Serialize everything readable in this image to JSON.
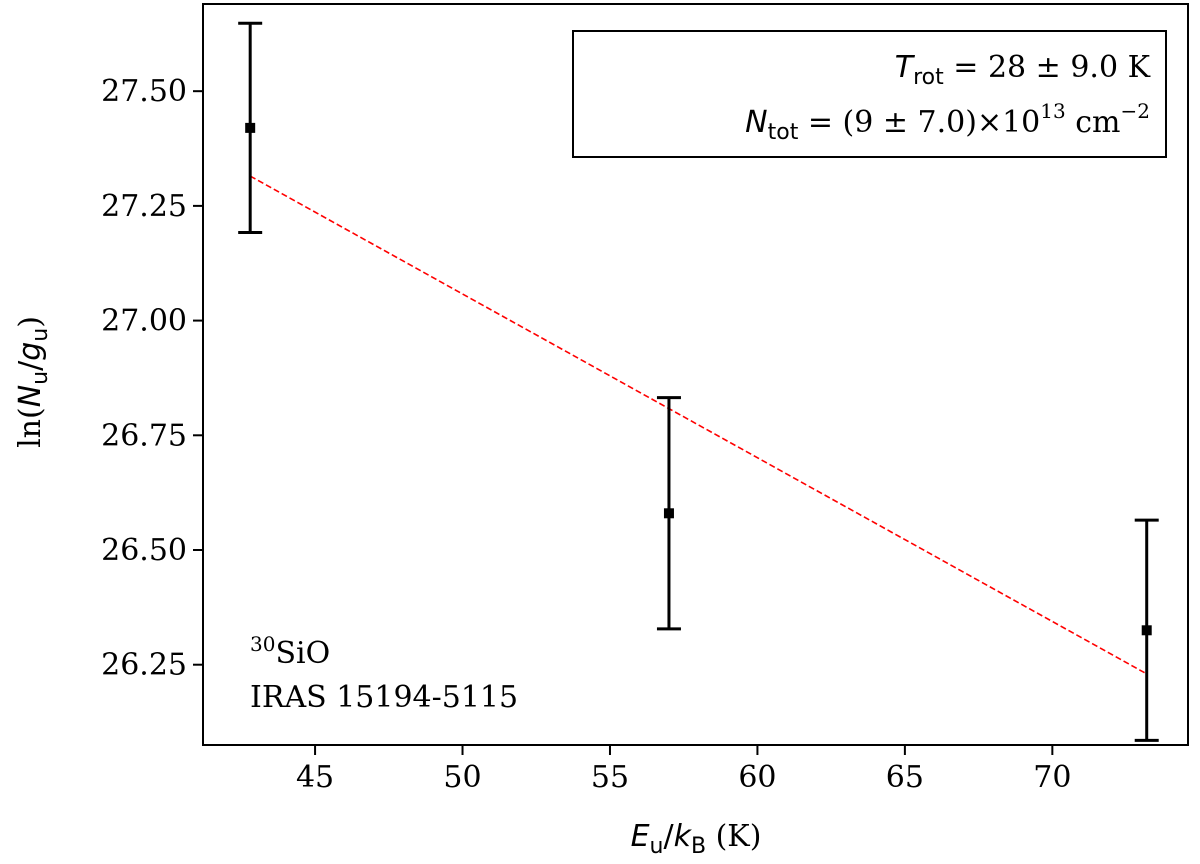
{
  "chart_data": {
    "type": "scatter",
    "xlim": [
      41.2,
      74.6
    ],
    "ylim": [
      26.075,
      27.69
    ],
    "x_ticks": [
      45,
      50,
      55,
      60,
      65,
      70
    ],
    "y_ticks": [
      26.25,
      26.5,
      26.75,
      27.0,
      27.25,
      27.5
    ],
    "x_tick_labels": [
      "45",
      "50",
      "55",
      "60",
      "65",
      "70"
    ],
    "y_tick_labels": [
      "26.25",
      "26.50",
      "26.75",
      "27.00",
      "27.25",
      "27.50"
    ],
    "xlabel": {
      "main": "E",
      "sub": "u",
      "slash": "/",
      "main2": "k",
      "sub2": "B",
      "unit": " (K)"
    },
    "ylabel": {
      "prefix": "ln(",
      "main": "N",
      "sub": "u",
      "slash": "/",
      "main2": "g",
      "sub2": "u",
      "suffix": ")"
    },
    "series": [
      {
        "x": [
          42.8,
          57.0,
          73.2
        ],
        "y": [
          27.42,
          26.58,
          26.325
        ],
        "yerr": [
          0.228,
          0.252,
          0.24
        ],
        "color": "#000000"
      }
    ],
    "fit_line": {
      "x": [
        42.8,
        73.2
      ],
      "y": [
        27.315,
        26.23
      ],
      "color": "#ff0000",
      "style": "dashed"
    },
    "legend": {
      "placement": "top-right",
      "line1": {
        "sym": "T",
        "sub": "rot",
        "text": " = 28 ± 9.0 K"
      },
      "line2": {
        "sym": "N",
        "sub": "tot",
        "text": " = (9 ± 7.0)×10",
        "sup": "13",
        "unit": " cm",
        "unit_sup": "−2"
      }
    },
    "annotation": {
      "placement": "bottom-left",
      "species_sup": "30",
      "species": "SiO",
      "source": "IRAS 15194-5115"
    },
    "grid": false
  }
}
